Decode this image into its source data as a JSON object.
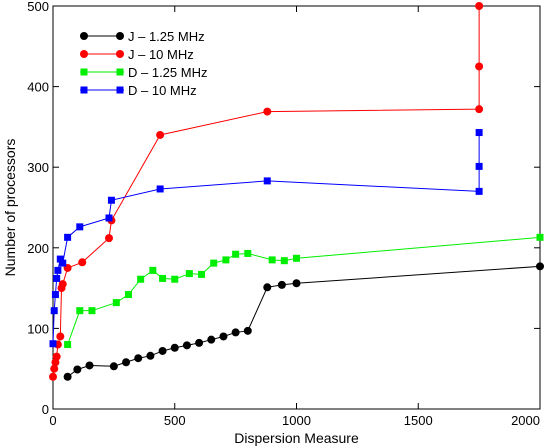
{
  "chart_data": {
    "type": "line",
    "title": "",
    "xlabel": "Dispersion Measure",
    "ylabel": "Number of processors",
    "xlim": [
      0,
      2000
    ],
    "ylim": [
      0,
      500
    ],
    "x_ticks": [
      0,
      500,
      1000,
      1500,
      2000
    ],
    "y_ticks": [
      0,
      100,
      200,
      300,
      400,
      500
    ],
    "grid": false,
    "legend_position": "top-left",
    "series": [
      {
        "name": "J – 1.25 MHz",
        "color": "#000000",
        "marker": "circle",
        "x": [
          60,
          100,
          150,
          250,
          300,
          350,
          400,
          450,
          500,
          550,
          600,
          650,
          700,
          750,
          800,
          880,
          940,
          1000,
          2000
        ],
        "y": [
          40,
          49,
          54,
          53,
          58,
          63,
          66,
          72,
          76,
          79,
          82,
          86,
          90,
          95,
          97,
          151,
          154,
          156,
          177
        ]
      },
      {
        "name": "J – 10 MHz",
        "color": "#ff0000",
        "marker": "circle",
        "x": [
          0,
          5,
          10,
          15,
          20,
          30,
          35,
          40,
          60,
          120,
          230,
          240,
          440,
          880,
          1750,
          1750,
          1750
        ],
        "y": [
          40,
          50,
          58,
          65,
          80,
          90,
          150,
          155,
          175,
          182,
          212,
          234,
          340,
          369,
          372,
          425,
          500
        ]
      },
      {
        "name": "D – 1.25 MHz",
        "color": "#00ee00",
        "marker": "square",
        "x": [
          60,
          110,
          160,
          260,
          310,
          360,
          410,
          450,
          500,
          560,
          610,
          660,
          710,
          750,
          800,
          900,
          950,
          1000,
          2000
        ],
        "y": [
          80,
          122,
          122,
          132,
          142,
          161,
          172,
          162,
          161,
          168,
          167,
          181,
          185,
          192,
          193,
          185,
          184,
          187,
          213
        ]
      },
      {
        "name": "D – 10 MHz",
        "color": "#0000ff",
        "marker": "square",
        "x": [
          0,
          5,
          10,
          15,
          20,
          30,
          40,
          60,
          110,
          230,
          240,
          440,
          880,
          1750,
          1750,
          1750
        ],
        "y": [
          81,
          122,
          142,
          162,
          172,
          186,
          181,
          213,
          226,
          237,
          259,
          273,
          283,
          270,
          301,
          343
        ]
      }
    ]
  }
}
